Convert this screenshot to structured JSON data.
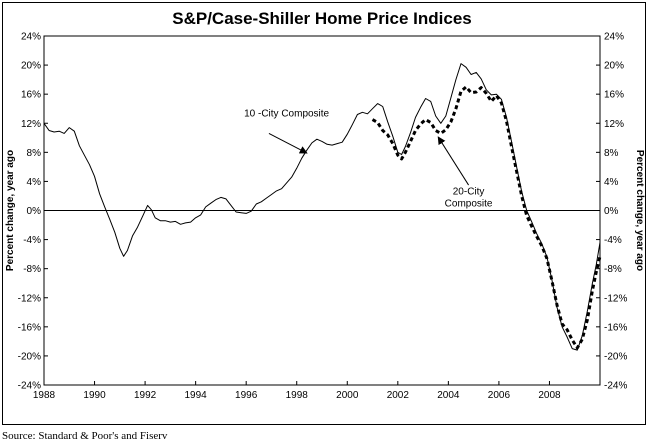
{
  "chart_data": {
    "type": "line",
    "title": "S&P/Case-Shiller Home Price Indices",
    "ylabel_left": "Percent change, year ago",
    "ylabel_right": "Percent change, year ago",
    "source": "Source: Standard & Poor's and Fiserv",
    "xlim": [
      1988,
      2010
    ],
    "ylim": [
      -24,
      24
    ],
    "x_ticks": [
      "1988",
      "1990",
      "1992",
      "1994",
      "1996",
      "1998",
      "2000",
      "2002",
      "2004",
      "2006",
      "2008"
    ],
    "y_ticks": [
      "24%",
      "20%",
      "16%",
      "12%",
      "8%",
      "4%",
      "0%",
      "-4%",
      "-8%",
      "-12%",
      "-16%",
      "-20%",
      "-24%"
    ],
    "grid": false,
    "series": [
      {
        "name": "10 -City Composite",
        "style": "solid",
        "color": "#000000",
        "points": [
          [
            1988.0,
            12.0
          ],
          [
            1988.2,
            11.0
          ],
          [
            1988.4,
            10.8
          ],
          [
            1988.6,
            10.9
          ],
          [
            1988.8,
            10.6
          ],
          [
            1989.0,
            11.4
          ],
          [
            1989.2,
            10.9
          ],
          [
            1989.4,
            8.9
          ],
          [
            1989.6,
            7.6
          ],
          [
            1989.8,
            6.3
          ],
          [
            1990.0,
            4.7
          ],
          [
            1990.2,
            2.3
          ],
          [
            1990.4,
            0.5
          ],
          [
            1990.6,
            -1.2
          ],
          [
            1990.8,
            -3.0
          ],
          [
            1991.0,
            -5.2
          ],
          [
            1991.15,
            -6.3
          ],
          [
            1991.3,
            -5.5
          ],
          [
            1991.5,
            -3.5
          ],
          [
            1991.7,
            -2.3
          ],
          [
            1991.9,
            -0.8
          ],
          [
            1992.1,
            0.7
          ],
          [
            1992.25,
            0.1
          ],
          [
            1992.4,
            -1.0
          ],
          [
            1992.6,
            -1.4
          ],
          [
            1992.8,
            -1.4
          ],
          [
            1993.0,
            -1.6
          ],
          [
            1993.2,
            -1.5
          ],
          [
            1993.4,
            -1.9
          ],
          [
            1993.6,
            -1.7
          ],
          [
            1993.8,
            -1.6
          ],
          [
            1994.0,
            -1.0
          ],
          [
            1994.2,
            -0.6
          ],
          [
            1994.4,
            0.5
          ],
          [
            1994.6,
            1.0
          ],
          [
            1994.8,
            1.5
          ],
          [
            1995.0,
            1.8
          ],
          [
            1995.2,
            1.6
          ],
          [
            1995.4,
            0.7
          ],
          [
            1995.6,
            -0.2
          ],
          [
            1995.8,
            -0.3
          ],
          [
            1996.0,
            -0.4
          ],
          [
            1996.2,
            -0.1
          ],
          [
            1996.4,
            0.9
          ],
          [
            1996.6,
            1.2
          ],
          [
            1996.8,
            1.7
          ],
          [
            1997.0,
            2.2
          ],
          [
            1997.2,
            2.7
          ],
          [
            1997.4,
            3.0
          ],
          [
            1997.6,
            3.8
          ],
          [
            1997.8,
            4.6
          ],
          [
            1998.0,
            5.8
          ],
          [
            1998.2,
            7.2
          ],
          [
            1998.4,
            8.3
          ],
          [
            1998.6,
            9.3
          ],
          [
            1998.8,
            9.8
          ],
          [
            1999.0,
            9.5
          ],
          [
            1999.2,
            9.1
          ],
          [
            1999.4,
            9.0
          ],
          [
            1999.6,
            9.2
          ],
          [
            1999.8,
            9.4
          ],
          [
            2000.0,
            10.5
          ],
          [
            2000.2,
            11.8
          ],
          [
            2000.4,
            13.2
          ],
          [
            2000.6,
            13.5
          ],
          [
            2000.8,
            13.3
          ],
          [
            2001.0,
            14.0
          ],
          [
            2001.2,
            14.7
          ],
          [
            2001.4,
            14.3
          ],
          [
            2001.6,
            12.2
          ],
          [
            2001.8,
            10.2
          ],
          [
            2002.0,
            8.0
          ],
          [
            2002.15,
            7.7
          ],
          [
            2002.3,
            8.8
          ],
          [
            2002.5,
            10.7
          ],
          [
            2002.7,
            12.8
          ],
          [
            2002.9,
            14.2
          ],
          [
            2003.1,
            15.4
          ],
          [
            2003.3,
            15.0
          ],
          [
            2003.5,
            13.0
          ],
          [
            2003.7,
            12.0
          ],
          [
            2003.9,
            13.0
          ],
          [
            2004.1,
            15.5
          ],
          [
            2004.3,
            18.0
          ],
          [
            2004.5,
            20.2
          ],
          [
            2004.7,
            19.7
          ],
          [
            2004.9,
            18.7
          ],
          [
            2005.1,
            19.0
          ],
          [
            2005.3,
            18.1
          ],
          [
            2005.5,
            16.6
          ],
          [
            2005.7,
            15.9
          ],
          [
            2005.9,
            16.0
          ],
          [
            2006.1,
            15.3
          ],
          [
            2006.3,
            12.8
          ],
          [
            2006.5,
            9.5
          ],
          [
            2006.7,
            6.0
          ],
          [
            2006.9,
            2.6
          ],
          [
            2007.1,
            0.0
          ],
          [
            2007.3,
            -1.6
          ],
          [
            2007.5,
            -3.2
          ],
          [
            2007.7,
            -4.6
          ],
          [
            2007.9,
            -6.4
          ],
          [
            2008.1,
            -9.6
          ],
          [
            2008.3,
            -13.3
          ],
          [
            2008.5,
            -16.0
          ],
          [
            2008.7,
            -17.4
          ],
          [
            2008.9,
            -19.0
          ],
          [
            2009.1,
            -19.2
          ],
          [
            2009.3,
            -17.2
          ],
          [
            2009.5,
            -13.8
          ],
          [
            2009.7,
            -10.0
          ],
          [
            2009.85,
            -7.5
          ],
          [
            2010.0,
            -4.4
          ]
        ]
      },
      {
        "name": "20-City Composite",
        "style": "dashed",
        "color": "#000000",
        "points": [
          [
            2001.0,
            12.5
          ],
          [
            2001.2,
            12.1
          ],
          [
            2001.4,
            11.0
          ],
          [
            2001.6,
            10.4
          ],
          [
            2001.8,
            9.2
          ],
          [
            2002.0,
            7.6
          ],
          [
            2002.15,
            7.1
          ],
          [
            2002.3,
            8.0
          ],
          [
            2002.5,
            9.5
          ],
          [
            2002.7,
            11.0
          ],
          [
            2002.9,
            11.9
          ],
          [
            2003.1,
            12.5
          ],
          [
            2003.3,
            12.1
          ],
          [
            2003.5,
            11.0
          ],
          [
            2003.7,
            10.6
          ],
          [
            2003.9,
            11.1
          ],
          [
            2004.1,
            12.2
          ],
          [
            2004.3,
            14.0
          ],
          [
            2004.5,
            16.4
          ],
          [
            2004.7,
            17.0
          ],
          [
            2004.9,
            16.2
          ],
          [
            2005.1,
            16.3
          ],
          [
            2005.3,
            16.9
          ],
          [
            2005.5,
            16.1
          ],
          [
            2005.7,
            15.0
          ],
          [
            2005.9,
            15.8
          ],
          [
            2006.1,
            14.8
          ],
          [
            2006.3,
            12.3
          ],
          [
            2006.5,
            8.8
          ],
          [
            2006.7,
            5.4
          ],
          [
            2006.9,
            2.0
          ],
          [
            2007.1,
            -0.7
          ],
          [
            2007.3,
            -2.2
          ],
          [
            2007.5,
            -3.6
          ],
          [
            2007.7,
            -4.9
          ],
          [
            2007.9,
            -6.6
          ],
          [
            2008.1,
            -9.7
          ],
          [
            2008.3,
            -13.0
          ],
          [
            2008.5,
            -15.6
          ],
          [
            2008.7,
            -16.4
          ],
          [
            2008.9,
            -17.8
          ],
          [
            2009.1,
            -18.9
          ],
          [
            2009.3,
            -17.7
          ],
          [
            2009.5,
            -15.0
          ],
          [
            2009.7,
            -11.0
          ],
          [
            2009.85,
            -8.5
          ],
          [
            2010.0,
            -6.3
          ]
        ]
      }
    ],
    "annotations": [
      {
        "text": [
          "10 -City Composite"
        ],
        "arrow_from": [
          1996.9,
          10.6
        ],
        "arrow_to": [
          1998.4,
          7.9
        ]
      },
      {
        "text": [
          "20-City",
          "Composite"
        ],
        "arrow_from": [
          2004.8,
          3.5
        ],
        "arrow_to": [
          2003.6,
          10.1
        ]
      }
    ]
  }
}
